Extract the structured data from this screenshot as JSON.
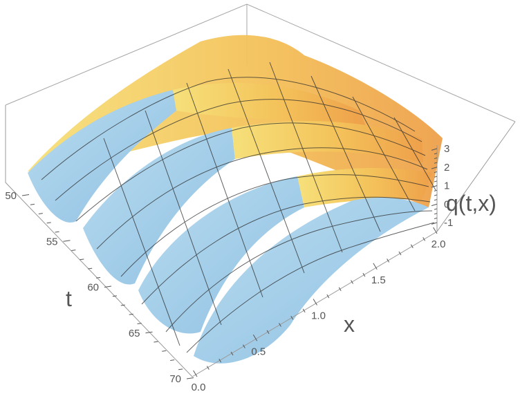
{
  "chart_data": {
    "type": "surface",
    "title": "",
    "xlabel": "t",
    "ylabel": "x",
    "zlabel": "q(t,x)",
    "t_range": [
      50,
      70
    ],
    "x_range": [
      0.0,
      2.0
    ],
    "z_range": [
      -1,
      3
    ],
    "t_ticks": [
      "50",
      "55",
      "60",
      "65",
      "70"
    ],
    "x_ticks": [
      "0.0",
      "0.5",
      "1.0",
      "1.5",
      "2.0"
    ],
    "z_ticks": [
      "-1",
      "0",
      "1",
      "2",
      "3"
    ],
    "grid": false,
    "mesh": true,
    "ridges": [
      {
        "t_start": 52.5,
        "t_end": 55.5,
        "q_peak": 3.1
      },
      {
        "t_start": 56.5,
        "t_end": 59.5,
        "q_peak": 3.1
      },
      {
        "t_start": 60.5,
        "t_end": 63.5,
        "q_peak": 3.1
      },
      {
        "t_start": 65.0,
        "t_end": 67.5,
        "q_peak": 3.0
      }
    ],
    "valley_level": -1,
    "colors": {
      "surface_high": "#f0a545",
      "surface_mid": "#f2d36b",
      "surface_low": "#a9d3ee",
      "mesh": "#2a2a2a",
      "box": "#9a9a9a"
    }
  }
}
